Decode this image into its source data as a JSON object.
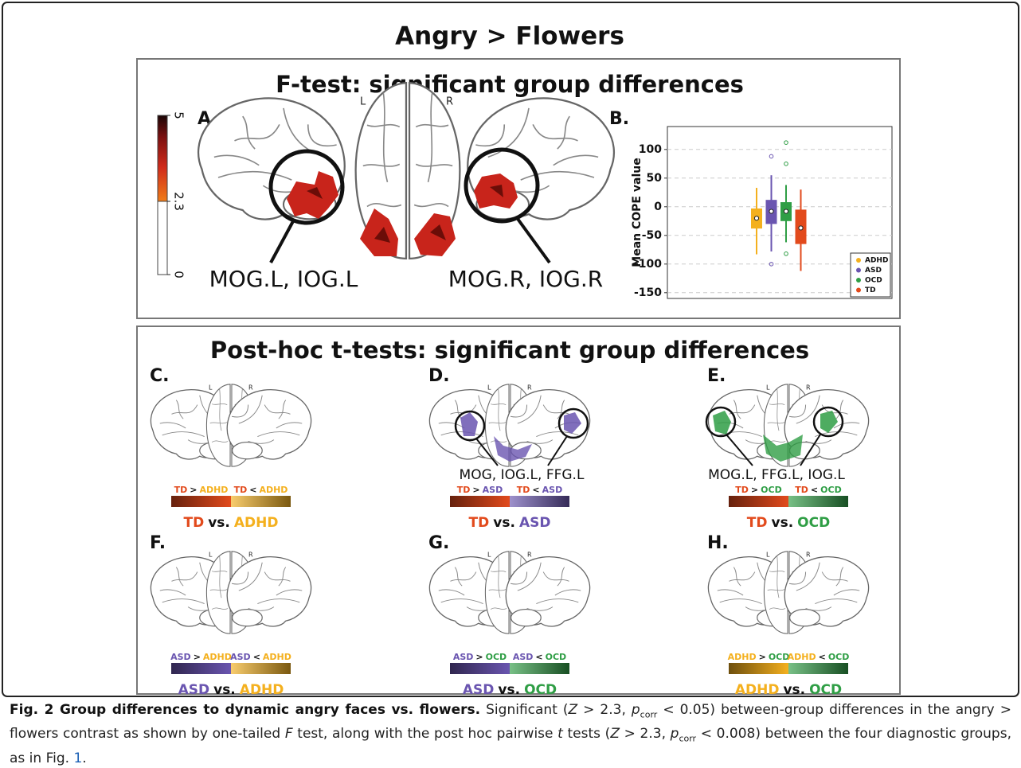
{
  "title": "Angry > Flowers",
  "group_colors": {
    "TD": "#e24a1c",
    "ADHD": "#f4b01e",
    "ASD": "#6a55b0",
    "OCD": "#2f9e45"
  },
  "f_test": {
    "title": "F-test: significant group differences",
    "panel_a": {
      "letter": "A.",
      "brain_labels": [
        "L",
        "R"
      ],
      "colorbar": {
        "range": [
          0,
          5
        ],
        "ticks": [
          5,
          2.3,
          0
        ]
      },
      "region_labels": [
        "MOG.L, IOG.L",
        "MOG.R, IOG.R"
      ]
    },
    "panel_b_letter": "B."
  },
  "chart_data": {
    "type": "box",
    "ylabel": "Mean COPE value",
    "ylim": [
      -160,
      140
    ],
    "yticks": [
      100,
      50,
      0,
      -50,
      -100,
      -150
    ],
    "grid": true,
    "legend": "lower right",
    "series": [
      {
        "name": "ADHD",
        "color": "#f4b01e",
        "whisker_low": -83,
        "q1": -38,
        "median": -20,
        "q3": -3,
        "whisker_high": 33,
        "outliers": []
      },
      {
        "name": "ASD",
        "color": "#6a55b0",
        "whisker_low": -78,
        "q1": -30,
        "median": -8,
        "q3": 12,
        "whisker_high": 55,
        "outliers": [
          88,
          -100
        ]
      },
      {
        "name": "OCD",
        "color": "#2f9e45",
        "whisker_low": -62,
        "q1": -25,
        "median": -8,
        "q3": 8,
        "whisker_high": 38,
        "outliers": [
          112,
          75,
          -82
        ]
      },
      {
        "name": "TD",
        "color": "#e24a1c",
        "whisker_low": -112,
        "q1": -65,
        "median": -37,
        "q3": -5,
        "whisker_high": 30,
        "outliers": []
      }
    ]
  },
  "post_hoc": {
    "title": "Post-hoc t-tests: significant group differences",
    "vs": "vs.",
    "ops": [
      ">",
      "<"
    ],
    "panels": [
      {
        "letter": "C.",
        "brain_labels": [
          "L",
          "R"
        ],
        "groups": [
          "TD",
          "ADHD"
        ]
      },
      {
        "letter": "D.",
        "brain_labels": [
          "L",
          "R"
        ],
        "groups": [
          "TD",
          "ASD"
        ],
        "region_label": "MOG, IOG.L, FFG.L"
      },
      {
        "letter": "E.",
        "brain_labels": [
          "L",
          "R"
        ],
        "groups": [
          "TD",
          "OCD"
        ],
        "region_label": "MOG.L, FFG.L, IOG.L"
      },
      {
        "letter": "F.",
        "brain_labels": [
          "L",
          "R"
        ],
        "groups": [
          "ASD",
          "ADHD"
        ]
      },
      {
        "letter": "G.",
        "brain_labels": [
          "L",
          "R"
        ],
        "groups": [
          "ASD",
          "OCD"
        ]
      },
      {
        "letter": "H.",
        "brain_labels": [
          "L",
          "R"
        ],
        "groups": [
          "ADHD",
          "OCD"
        ]
      }
    ]
  },
  "caption": {
    "heading": "Fig. 2 Group differences to dynamic angry faces vs. flowers.",
    "body": [
      "Significant (",
      "Z",
      " > 2.3, ",
      "p",
      "corr",
      " < 0.05) between-group differences in the angry > flowers contrast as shown by one-tailed ",
      "F",
      " test, along with the post hoc pairwise ",
      "t",
      " tests (",
      "Z",
      " > 2.3, ",
      "p",
      "corr",
      " < 0.008) between the four diagnostic groups, as in Fig. ",
      "1",
      "."
    ]
  }
}
